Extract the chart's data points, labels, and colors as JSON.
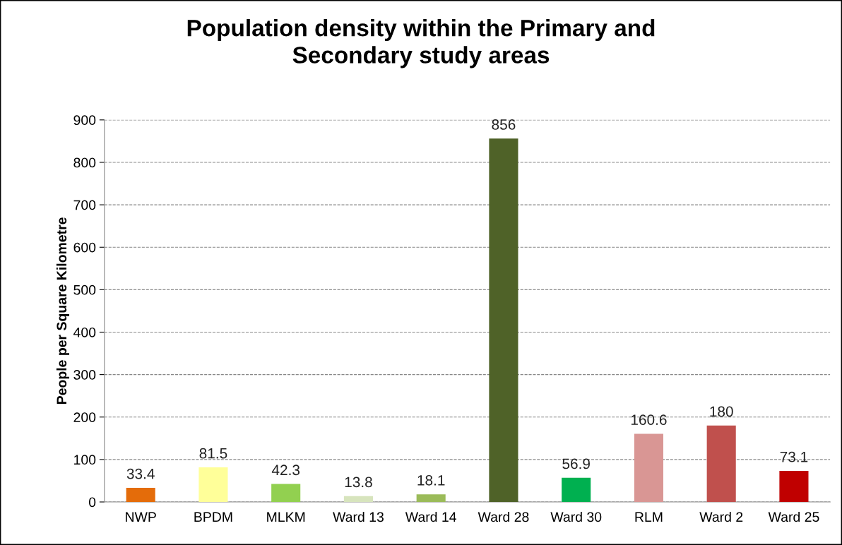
{
  "chart_data": {
    "type": "bar",
    "title": "Population density within the Primary and\nSecondary study areas",
    "ylabel": "People per Square Kilometre",
    "categories": [
      "NWP",
      "BPDM",
      "MLKM",
      "Ward 13",
      "Ward 14",
      "Ward 28",
      "Ward 30",
      "RLM",
      "Ward 2",
      "Ward 25"
    ],
    "values": [
      33.4,
      81.5,
      42.3,
      13.8,
      18.1,
      856,
      56.9,
      160.6,
      180,
      73.1
    ],
    "colors": [
      "#e46c0a",
      "#ffff99",
      "#92d050",
      "#d7e4bd",
      "#9bbb59",
      "#4f6228",
      "#00b050",
      "#d99694",
      "#c0504d",
      "#c00000"
    ],
    "ylim": [
      0,
      900
    ],
    "yticks": [
      0,
      100,
      200,
      300,
      400,
      500,
      600,
      700,
      800,
      900
    ],
    "grid": "y",
    "data_labels": true
  }
}
